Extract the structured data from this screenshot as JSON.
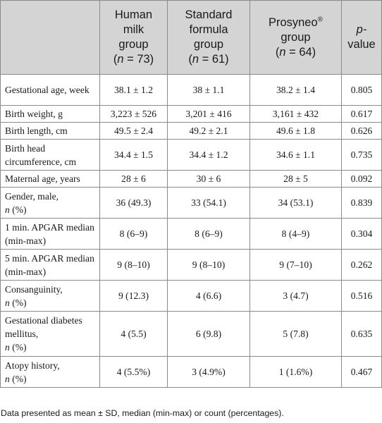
{
  "header": {
    "col0": "",
    "col1": {
      "l1": "Human",
      "l2": "milk",
      "l3": "group",
      "l4_pre": "(",
      "l4_n": "n",
      "l4_rest": " = 73)"
    },
    "col2": {
      "l1": "Standard",
      "l2": "formula",
      "l3": "group",
      "l4_pre": "(",
      "l4_n": "n",
      "l4_rest": " = 61)"
    },
    "col3": {
      "l1": "Prosyneo",
      "l1_sup": "®",
      "l2": "group",
      "l3_pre": "(",
      "l3_n": "n",
      "l3_rest": " = 64)"
    },
    "col4": {
      "l1": "p-",
      "l2": "value"
    }
  },
  "rows": [
    {
      "label": "Gestational age, week",
      "v1": "38.1 ± 1.2",
      "v2": "38 ± 1.1",
      "v3": "38.2 ± 1.4",
      "p": "0.805"
    },
    {
      "label": "Birth weight, g",
      "v1": "3,223 ± 526",
      "v2": "3,201 ± 416",
      "v3": "3,161 ± 432",
      "p": "0.617"
    },
    {
      "label": "Birth length, cm",
      "v1": "49.5 ± 2.4",
      "v2": "49.2 ± 2.1",
      "v3": "49.6 ± 1.8",
      "p": "0.626"
    },
    {
      "label": "Birth head circumference, cm",
      "v1": "34.4 ± 1.5",
      "v2": "34.4 ± 1.2",
      "v3": "34.6 ± 1.1",
      "p": "0.735"
    },
    {
      "label": "Maternal age, years",
      "v1": "28 ± 6",
      "v2": "30 ± 6",
      "v3": "28 ± 5",
      "p": "0.092"
    },
    {
      "label": "Gender, male,",
      "label_n": "n",
      "label_tail": " (%)",
      "v1": "36 (49.3)",
      "v2": "33 (54.1)",
      "v3": "34 (53.1)",
      "p": "0.839"
    },
    {
      "label": "1 min. APGAR median (min-max)",
      "v1": "8 (6–9)",
      "v2": "8 (6–9)",
      "v3": "8 (4–9)",
      "p": "0.304"
    },
    {
      "label": "5 min. APGAR median (min-max)",
      "v1": "9 (8–10)",
      "v2": "9 (8–10)",
      "v3": "9 (7–10)",
      "p": "0.262"
    },
    {
      "label": "Consanguinity,",
      "label_n": "n",
      "label_tail": " (%)",
      "v1": "9 (12.3)",
      "v2": "4 (6.6)",
      "v3": "3 (4.7)",
      "p": "0.516"
    },
    {
      "label": "Gestational diabetes mellitus,",
      "label_n": "n",
      "label_tail": " (%)",
      "v1": "4 (5.5)",
      "v2": "6 (9.8)",
      "v3": "5 (7.8)",
      "p": "0.635"
    },
    {
      "label": "Atopy history,",
      "label_n": "n",
      "label_tail": " (%)",
      "v1": "4 (5.5%)",
      "v2": "3 (4.9%)",
      "v3": "1 (1.6%)",
      "p": "0.467"
    }
  ],
  "footnote": "Data presented as mean ± SD, median (min-max) or count (percentages)."
}
